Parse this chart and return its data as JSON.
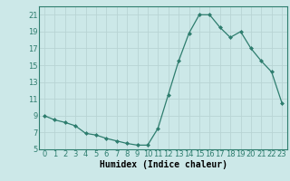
{
  "x": [
    0,
    1,
    2,
    3,
    4,
    5,
    6,
    7,
    8,
    9,
    10,
    11,
    12,
    13,
    14,
    15,
    16,
    17,
    18,
    19,
    20,
    21,
    22,
    23
  ],
  "y": [
    9.0,
    8.5,
    8.2,
    7.8,
    6.9,
    6.7,
    6.3,
    6.0,
    5.7,
    5.5,
    5.5,
    7.5,
    11.5,
    15.5,
    18.8,
    21.0,
    21.0,
    19.5,
    18.3,
    19.0,
    17.0,
    15.5,
    14.2,
    10.5
  ],
  "xlabel": "Humidex (Indice chaleur)",
  "line_color": "#2e7d6e",
  "marker": "D",
  "marker_size": 2.0,
  "bg_color": "#cce8e8",
  "grid_color": "#b8d4d4",
  "ylim": [
    5,
    22
  ],
  "xlim": [
    -0.5,
    23.5
  ],
  "yticks": [
    5,
    7,
    9,
    11,
    13,
    15,
    17,
    19,
    21
  ],
  "xticks": [
    0,
    1,
    2,
    3,
    4,
    5,
    6,
    7,
    8,
    9,
    10,
    11,
    12,
    13,
    14,
    15,
    16,
    17,
    18,
    19,
    20,
    21,
    22,
    23
  ],
  "tick_fontsize": 6.0,
  "xlabel_fontsize": 7.0
}
